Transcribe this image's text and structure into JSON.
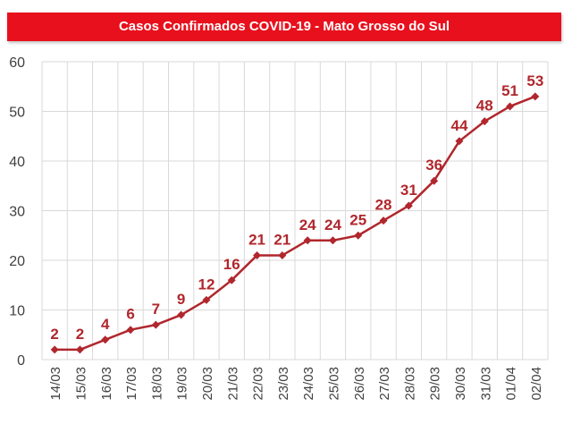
{
  "colors": {
    "title_bg": "#e8101c",
    "series": "#b0272d",
    "grid": "#d9d9d9",
    "axis_text": "#404040"
  },
  "chart_data": {
    "type": "line",
    "title": "Casos Confirmados COVID-19 -  Mato Grosso do Sul",
    "xlabel": "",
    "ylabel": "",
    "categories": [
      "14/03",
      "15/03",
      "16/03",
      "17/03",
      "18/03",
      "19/03",
      "20/03",
      "21/03",
      "22/03",
      "23/03",
      "24/03",
      "25/03",
      "26/03",
      "27/03",
      "28/03",
      "29/03",
      "30/03",
      "31/03",
      "01/04",
      "02/04"
    ],
    "series": [
      {
        "values": [
          2,
          2,
          4,
          6,
          7,
          9,
          12,
          16,
          21,
          21,
          24,
          24,
          25,
          28,
          31,
          36,
          44,
          48,
          51,
          53
        ]
      }
    ],
    "ylim": [
      0,
      60
    ],
    "yticks": [
      0,
      10,
      20,
      30,
      40,
      50,
      60
    ],
    "grid": "vertical-and-horizontal",
    "data_labels": true,
    "marker": "diamond"
  }
}
